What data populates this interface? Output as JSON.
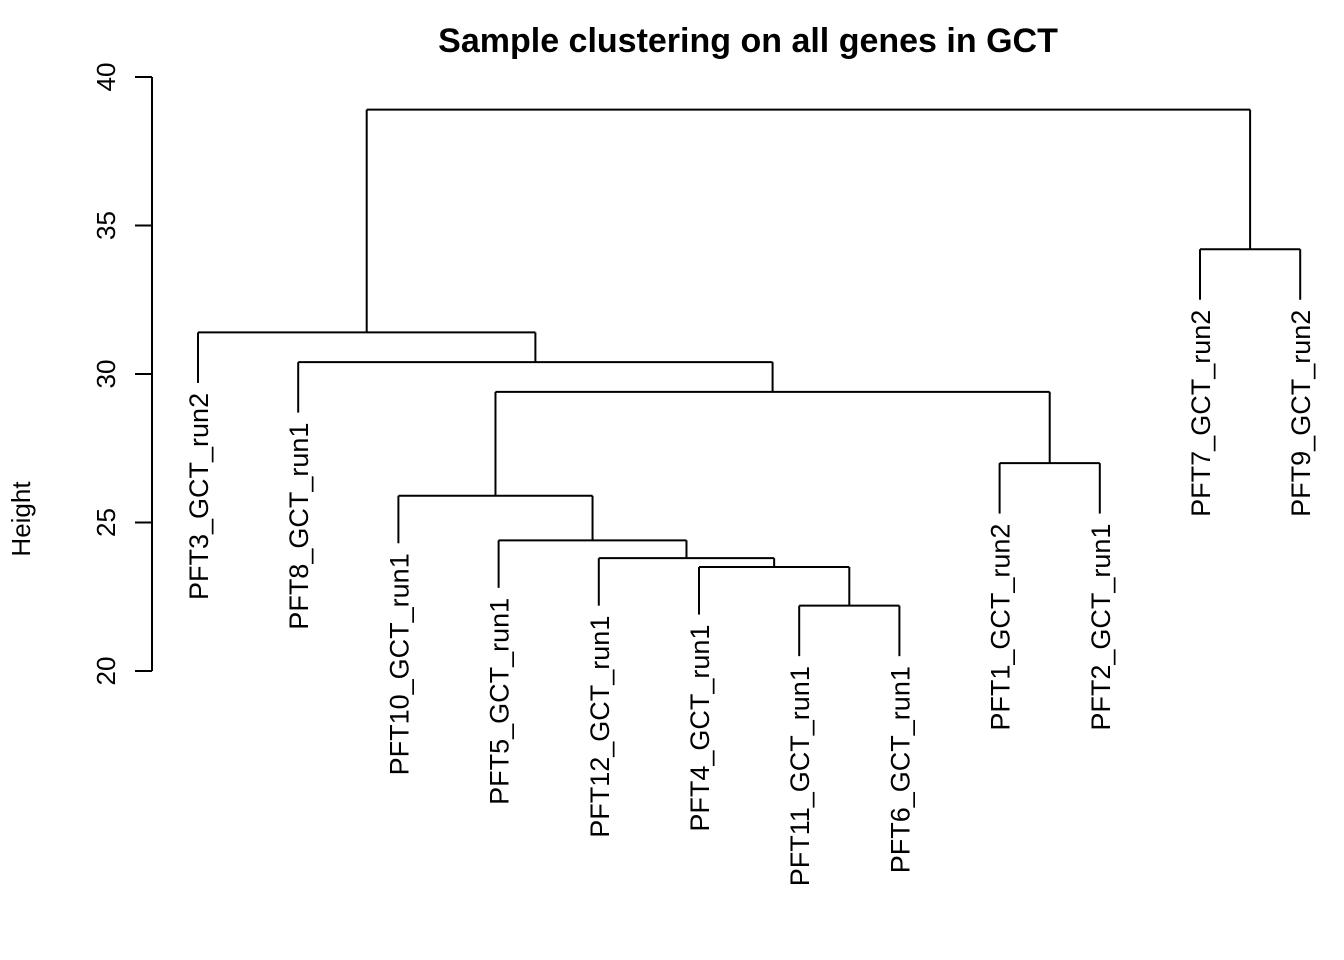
{
  "chart_data": {
    "type": "dendrogram",
    "title": "Sample clustering on all genes in GCT",
    "ylabel": "Height",
    "ylim": [
      20,
      40
    ],
    "yticks": [
      20,
      25,
      30,
      35,
      40
    ],
    "leaves": [
      {
        "label": "PFT3_GCT_run2",
        "height": 29.7
      },
      {
        "label": "PFT8_GCT_run1",
        "height": 28.7
      },
      {
        "label": "PFT10_GCT_run1",
        "height": 24.3
      },
      {
        "label": "PFT5_GCT_run1",
        "height": 22.8
      },
      {
        "label": "PFT12_GCT_run1",
        "height": 22.2
      },
      {
        "label": "PFT4_GCT_run1",
        "height": 21.9
      },
      {
        "label": "PFT11_GCT_run1",
        "height": 20.5
      },
      {
        "label": "PFT6_GCT_run1",
        "height": 20.5
      },
      {
        "label": "PFT1_GCT_run2",
        "height": 25.3
      },
      {
        "label": "PFT2_GCT_run1",
        "height": 25.3
      },
      {
        "label": "PFT7_GCT_run2",
        "height": 32.5
      },
      {
        "label": "PFT9_GCT_run2",
        "height": 32.5
      }
    ],
    "merges": [
      {
        "left": -7,
        "right": -8,
        "height": 22.2
      },
      {
        "left": -6,
        "right": 1,
        "height": 23.5
      },
      {
        "left": -5,
        "right": 2,
        "height": 23.8
      },
      {
        "left": -4,
        "right": 3,
        "height": 24.4
      },
      {
        "left": -3,
        "right": 4,
        "height": 25.9
      },
      {
        "left": -9,
        "right": -10,
        "height": 27.0
      },
      {
        "left": 5,
        "right": 6,
        "height": 29.4
      },
      {
        "left": -2,
        "right": 7,
        "height": 30.4
      },
      {
        "left": -1,
        "right": 8,
        "height": 31.4
      },
      {
        "left": -11,
        "right": -12,
        "height": 34.2
      },
      {
        "left": 9,
        "right": 10,
        "height": 38.9
      }
    ]
  }
}
